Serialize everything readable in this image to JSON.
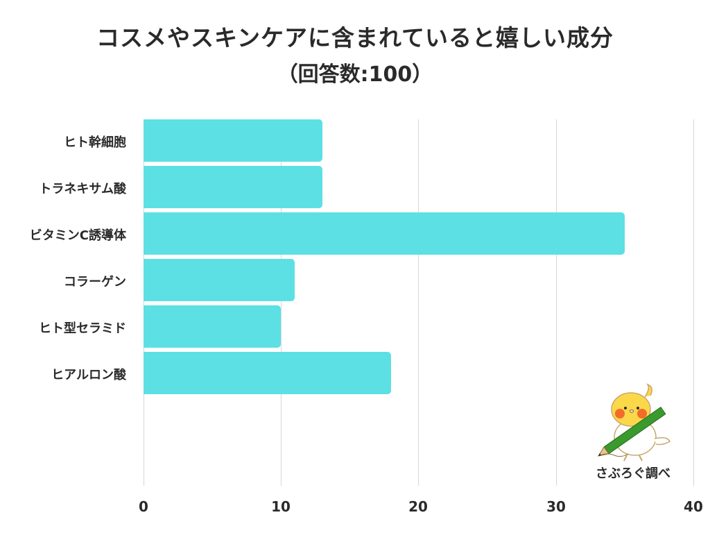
{
  "header": {
    "title": "コスメやスキンケアに含まれていると嬉しい成分",
    "subtitle": "（回答数:100）"
  },
  "colors": {
    "bar": "#5ce0e4",
    "grid": "#d6d6d6",
    "text": "#2a2a2a"
  },
  "chart_data": {
    "type": "bar",
    "orientation": "horizontal",
    "title": "コスメやスキンケアに含まれていると嬉しい成分",
    "subtitle": "（回答数:100）",
    "categories": [
      "ヒト幹細胞",
      "トラネキサム酸",
      "ビタミンC誘導体",
      "コラーゲン",
      "ヒト型セラミド",
      "ヒアルロン酸"
    ],
    "values": [
      13,
      13,
      35,
      11,
      10,
      18
    ],
    "xlabel": "",
    "ylabel": "",
    "xlim": [
      0,
      40
    ],
    "xticks": [
      "0",
      "10",
      "20",
      "30",
      "40"
    ],
    "grid": true,
    "legend": null
  },
  "credit": {
    "label": "さぶろぐ調べ",
    "mascot": "cockatiel-with-pencil-icon"
  }
}
